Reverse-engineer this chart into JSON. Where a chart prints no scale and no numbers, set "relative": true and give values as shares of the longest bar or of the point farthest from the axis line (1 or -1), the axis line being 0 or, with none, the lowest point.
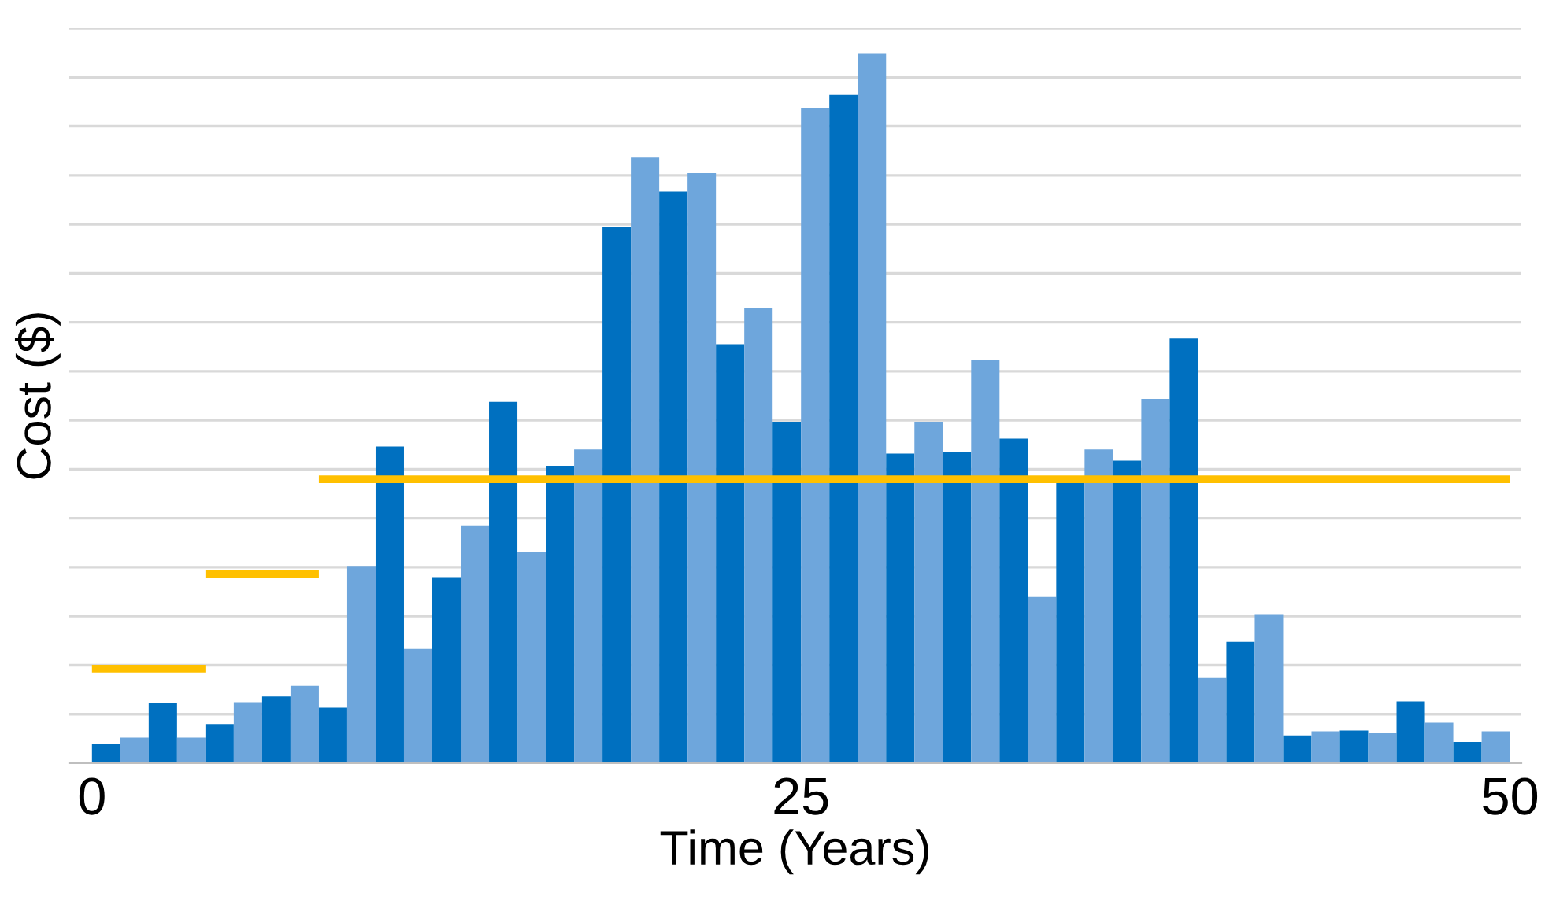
{
  "chart_data": {
    "type": "bar",
    "relative": true,
    "xlabel": "Time (Years)",
    "ylabel": "Cost ($)",
    "xlim": [
      -0.8,
      50.4
    ],
    "xticks": [
      0,
      25,
      50
    ],
    "grid": "y",
    "legend": false,
    "series": [
      {
        "x": [
          0.5,
          1.5,
          2.5,
          3.5,
          4.5,
          5.5,
          6.5,
          7.5,
          8.5,
          9.5,
          10.5,
          11.5,
          12.5,
          13.5,
          14.5,
          15.5,
          16.5,
          17.5,
          18.5,
          19.5,
          20.5,
          21.5,
          22.5,
          23.5,
          24.5,
          25.5,
          26.5,
          27.5,
          28.5,
          29.5,
          30.5,
          31.5,
          32.5,
          33.5,
          34.5,
          35.5,
          36.5,
          37.5,
          38.5,
          39.5,
          40.5,
          41.5,
          42.5,
          43.5,
          44.5,
          45.5,
          46.5,
          47.5,
          48.5,
          49.5
        ],
        "values": [
          0.027,
          0.036,
          0.085,
          0.036,
          0.055,
          0.086,
          0.094,
          0.109,
          0.078,
          0.278,
          0.446,
          0.161,
          0.262,
          0.335,
          0.509,
          0.298,
          0.419,
          0.442,
          0.755,
          0.853,
          0.805,
          0.831,
          0.59,
          0.641,
          0.481,
          0.923,
          0.941,
          1,
          0.436,
          0.481,
          0.438,
          0.568,
          0.457,
          0.234,
          0.396,
          0.442,
          0.426,
          0.513,
          0.598,
          0.12,
          0.171,
          0.21,
          0.039,
          0.045,
          0.046,
          0.043,
          0.087,
          0.057,
          0.03,
          0.045
        ],
        "colors": [
          "#0070c0",
          "#6ea6dc",
          "#0070c0",
          "#6ea6dc",
          "#0070c0",
          "#6ea6dc",
          "#0070c0",
          "#6ea6dc",
          "#0070c0",
          "#6ea6dc",
          "#0070c0",
          "#6ea6dc",
          "#0070c0",
          "#6ea6dc",
          "#0070c0",
          "#6ea6dc",
          "#0070c0",
          "#6ea6dc",
          "#0070c0",
          "#6ea6dc",
          "#0070c0",
          "#6ea6dc",
          "#0070c0",
          "#6ea6dc",
          "#0070c0",
          "#6ea6dc",
          "#0070c0",
          "#6ea6dc",
          "#0070c0",
          "#6ea6dc",
          "#0070c0",
          "#6ea6dc",
          "#0070c0",
          "#6ea6dc",
          "#0070c0",
          "#6ea6dc",
          "#0070c0",
          "#6ea6dc",
          "#0070c0",
          "#6ea6dc",
          "#0070c0",
          "#6ea6dc",
          "#0070c0",
          "#6ea6dc",
          "#0070c0",
          "#6ea6dc",
          "#0070c0",
          "#6ea6dc",
          "#0070c0",
          "#6ea6dc"
        ]
      },
      {
        "type": "line",
        "color": "#ffc000",
        "x": [
          0,
          4
        ],
        "values": [
          0.133,
          0.133
        ]
      },
      {
        "type": "line",
        "color": "#ffc000",
        "x": [
          4,
          8
        ],
        "values": [
          0.267,
          0.267
        ]
      },
      {
        "type": "line",
        "color": "#ffc000",
        "x": [
          8,
          50
        ],
        "values": [
          0.4,
          0.4
        ]
      }
    ]
  }
}
